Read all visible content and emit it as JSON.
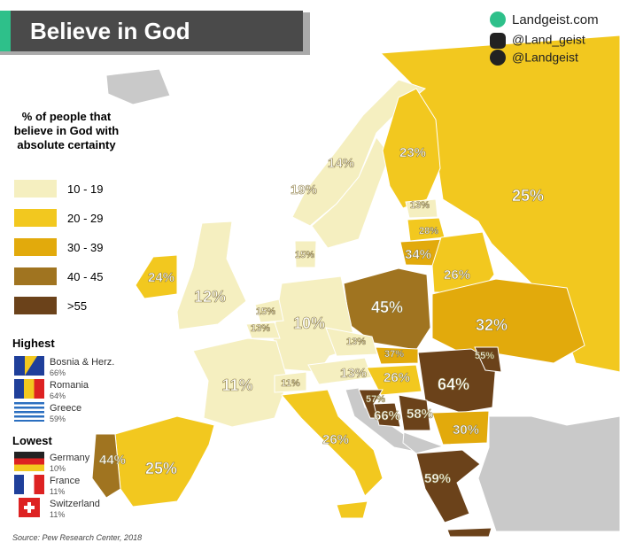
{
  "header": {
    "title": "Believe in God",
    "social": [
      "Landgeist.com",
      "@Land_geist",
      "@Landgeist"
    ]
  },
  "legend": {
    "title": "% of people that believe in God with absolute certainty",
    "items": [
      "10 - 19",
      "20 - 29",
      "30 - 39",
      "40 - 45",
      ">55"
    ]
  },
  "highest": {
    "title": "Highest",
    "items": [
      {
        "name": "Bosnia & Herz.",
        "value": "66%"
      },
      {
        "name": "Romania",
        "value": "64%"
      },
      {
        "name": "Greece",
        "value": "59%"
      }
    ]
  },
  "lowest": {
    "title": "Lowest",
    "items": [
      {
        "name": "Germany",
        "value": "10%"
      },
      {
        "name": "France",
        "value": "11%"
      },
      {
        "name": "Switzerland",
        "value": "11%"
      }
    ]
  },
  "map": {
    "labels": [
      "14%",
      "19%",
      "23%",
      "25%",
      "13%",
      "28%",
      "34%",
      "15%",
      "24%",
      "12%",
      "26%",
      "45%",
      "15%",
      "13%",
      "10%",
      "32%",
      "13%",
      "37%",
      "55%",
      "13%",
      "26%",
      "11%",
      "11%",
      "64%",
      "57%",
      "66%",
      "58%",
      "30%",
      "26%",
      "44%",
      "25%",
      "59%"
    ]
  },
  "source": "Source: Pew Research Center, 2018"
}
